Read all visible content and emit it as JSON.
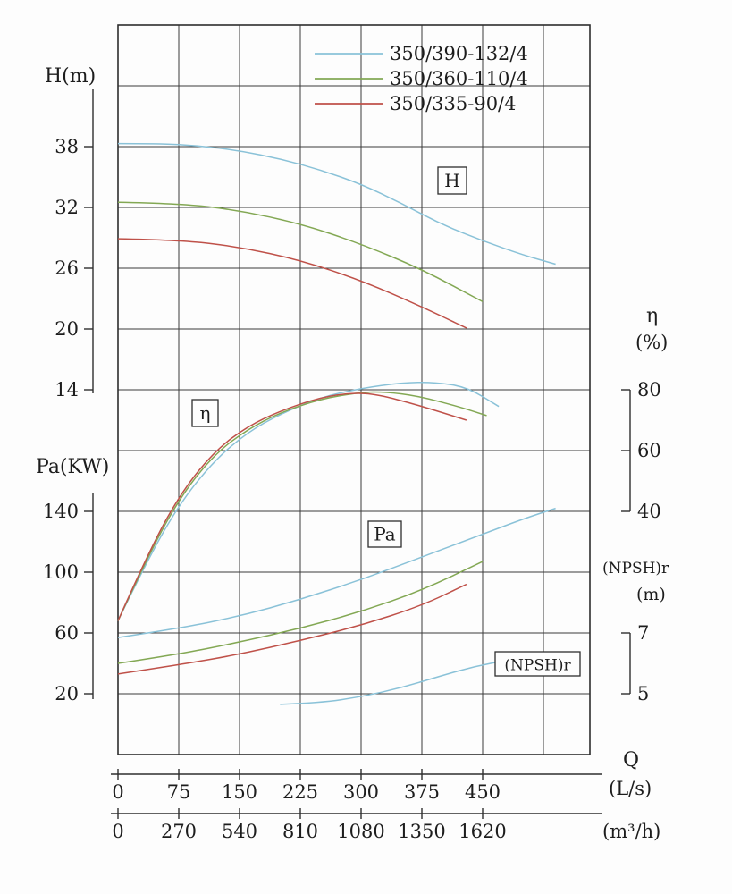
{
  "chart_data": {
    "type": "line",
    "title": "",
    "grid": true,
    "legend_position": "top-center",
    "x_axis": {
      "name": "Q",
      "xlim_ls": [
        0,
        580
      ],
      "units_primary": {
        "label": "(L/s)",
        "ticks": [
          0,
          75,
          150,
          225,
          300,
          375,
          450
        ]
      },
      "units_secondary": {
        "label": "(m³/h)",
        "ticks": [
          0,
          270,
          540,
          810,
          1080,
          1350,
          1620
        ]
      }
    },
    "y_axes": {
      "head": {
        "label": "H(m)",
        "ticks": [
          38,
          32,
          26,
          20,
          14
        ],
        "units": "m"
      },
      "power": {
        "label": "Pa(KW)",
        "ticks": [
          140,
          100,
          60,
          20
        ],
        "units": "KW"
      },
      "efficiency": {
        "label": "η",
        "sublabel": "(%)",
        "ticks": [
          80,
          60,
          40
        ],
        "units": "%"
      },
      "npshr": {
        "label": "(NPSH)r",
        "sublabel": "(m)",
        "ticks": [
          7,
          5
        ],
        "units": "m"
      }
    },
    "curve_labels": {
      "head": "H",
      "efficiency": "η",
      "power": "Pa",
      "npshr": "(NPSH)r"
    },
    "legend": [
      {
        "name": "350/390-132/4",
        "color": "#8ac2d8"
      },
      {
        "name": "350/360-110/4",
        "color": "#83a854"
      },
      {
        "name": "350/335-90/4",
        "color": "#bf5149"
      }
    ],
    "series": {
      "head": [
        {
          "name": "350/390-132/4",
          "color": "#8ac2d8",
          "points": [
            [
              0,
              38.3
            ],
            [
              50,
              38.3
            ],
            [
              100,
              38.1
            ],
            [
              150,
              37.6
            ],
            [
              200,
              36.8
            ],
            [
              250,
              35.7
            ],
            [
              300,
              34.3
            ],
            [
              350,
              32.4
            ],
            [
              400,
              30.3
            ],
            [
              450,
              28.7
            ],
            [
              500,
              27.3
            ],
            [
              540,
              26.4
            ]
          ]
        },
        {
          "name": "350/360-110/4",
          "color": "#83a854",
          "points": [
            [
              0,
              32.5
            ],
            [
              75,
              32.4
            ],
            [
              150,
              31.7
            ],
            [
              225,
              30.4
            ],
            [
              300,
              28.4
            ],
            [
              375,
              25.9
            ],
            [
              450,
              22.7
            ]
          ]
        },
        {
          "name": "350/335-90/4",
          "color": "#bf5149",
          "points": [
            [
              0,
              28.9
            ],
            [
              75,
              28.8
            ],
            [
              150,
              28.1
            ],
            [
              225,
              26.8
            ],
            [
              300,
              24.8
            ],
            [
              375,
              22.2
            ],
            [
              430,
              20.1
            ]
          ]
        }
      ],
      "efficiency": [
        {
          "name": "350/390-132/4",
          "color": "#8ac2d8",
          "points": [
            [
              0,
              4
            ],
            [
              40,
              26
            ],
            [
              80,
              44
            ],
            [
              120,
              57
            ],
            [
              160,
              66
            ],
            [
              200,
              72
            ],
            [
              250,
              77.5
            ],
            [
              300,
              80.5
            ],
            [
              350,
              82.3
            ],
            [
              390,
              82.5
            ],
            [
              430,
              81
            ],
            [
              470,
              74.5
            ]
          ]
        },
        {
          "name": "350/360-110/4",
          "color": "#83a854",
          "points": [
            [
              0,
              4
            ],
            [
              40,
              27
            ],
            [
              80,
              46
            ],
            [
              120,
              59
            ],
            [
              160,
              67
            ],
            [
              200,
              72.5
            ],
            [
              250,
              77
            ],
            [
              300,
              79.2
            ],
            [
              330,
              79.3
            ],
            [
              370,
              78
            ],
            [
              420,
              74.5
            ],
            [
              455,
              71.5
            ]
          ]
        },
        {
          "name": "350/335-90/4",
          "color": "#bf5149",
          "points": [
            [
              0,
              4
            ],
            [
              40,
              28
            ],
            [
              80,
              47
            ],
            [
              120,
              60
            ],
            [
              160,
              68
            ],
            [
              200,
              73
            ],
            [
              250,
              77.5
            ],
            [
              290,
              79
            ],
            [
              320,
              78.5
            ],
            [
              370,
              75
            ],
            [
              430,
              70
            ]
          ]
        }
      ],
      "power": [
        {
          "name": "350/390-132/4",
          "color": "#8ac2d8",
          "points": [
            [
              0,
              57
            ],
            [
              75,
              63
            ],
            [
              150,
              71
            ],
            [
              225,
              82
            ],
            [
              300,
              95
            ],
            [
              375,
              110
            ],
            [
              450,
              125
            ],
            [
              500,
              135
            ],
            [
              540,
              142
            ]
          ]
        },
        {
          "name": "350/360-110/4",
          "color": "#83a854",
          "points": [
            [
              0,
              40
            ],
            [
              75,
              46
            ],
            [
              150,
              54
            ],
            [
              225,
              63
            ],
            [
              300,
              74
            ],
            [
              375,
              88
            ],
            [
              450,
              107
            ]
          ]
        },
        {
          "name": "350/335-90/4",
          "color": "#bf5149",
          "points": [
            [
              0,
              33
            ],
            [
              75,
              39
            ],
            [
              150,
              46
            ],
            [
              225,
              55
            ],
            [
              300,
              65
            ],
            [
              375,
              78
            ],
            [
              430,
              92
            ]
          ]
        }
      ],
      "npshr": [
        {
          "name": "350/390-132/4",
          "color": "#8ac2d8",
          "points": [
            [
              200,
              4.65
            ],
            [
              250,
              4.7
            ],
            [
              300,
              4.9
            ],
            [
              350,
              5.2
            ],
            [
              400,
              5.6
            ],
            [
              440,
              5.9
            ],
            [
              480,
              6.1
            ]
          ]
        }
      ]
    }
  }
}
